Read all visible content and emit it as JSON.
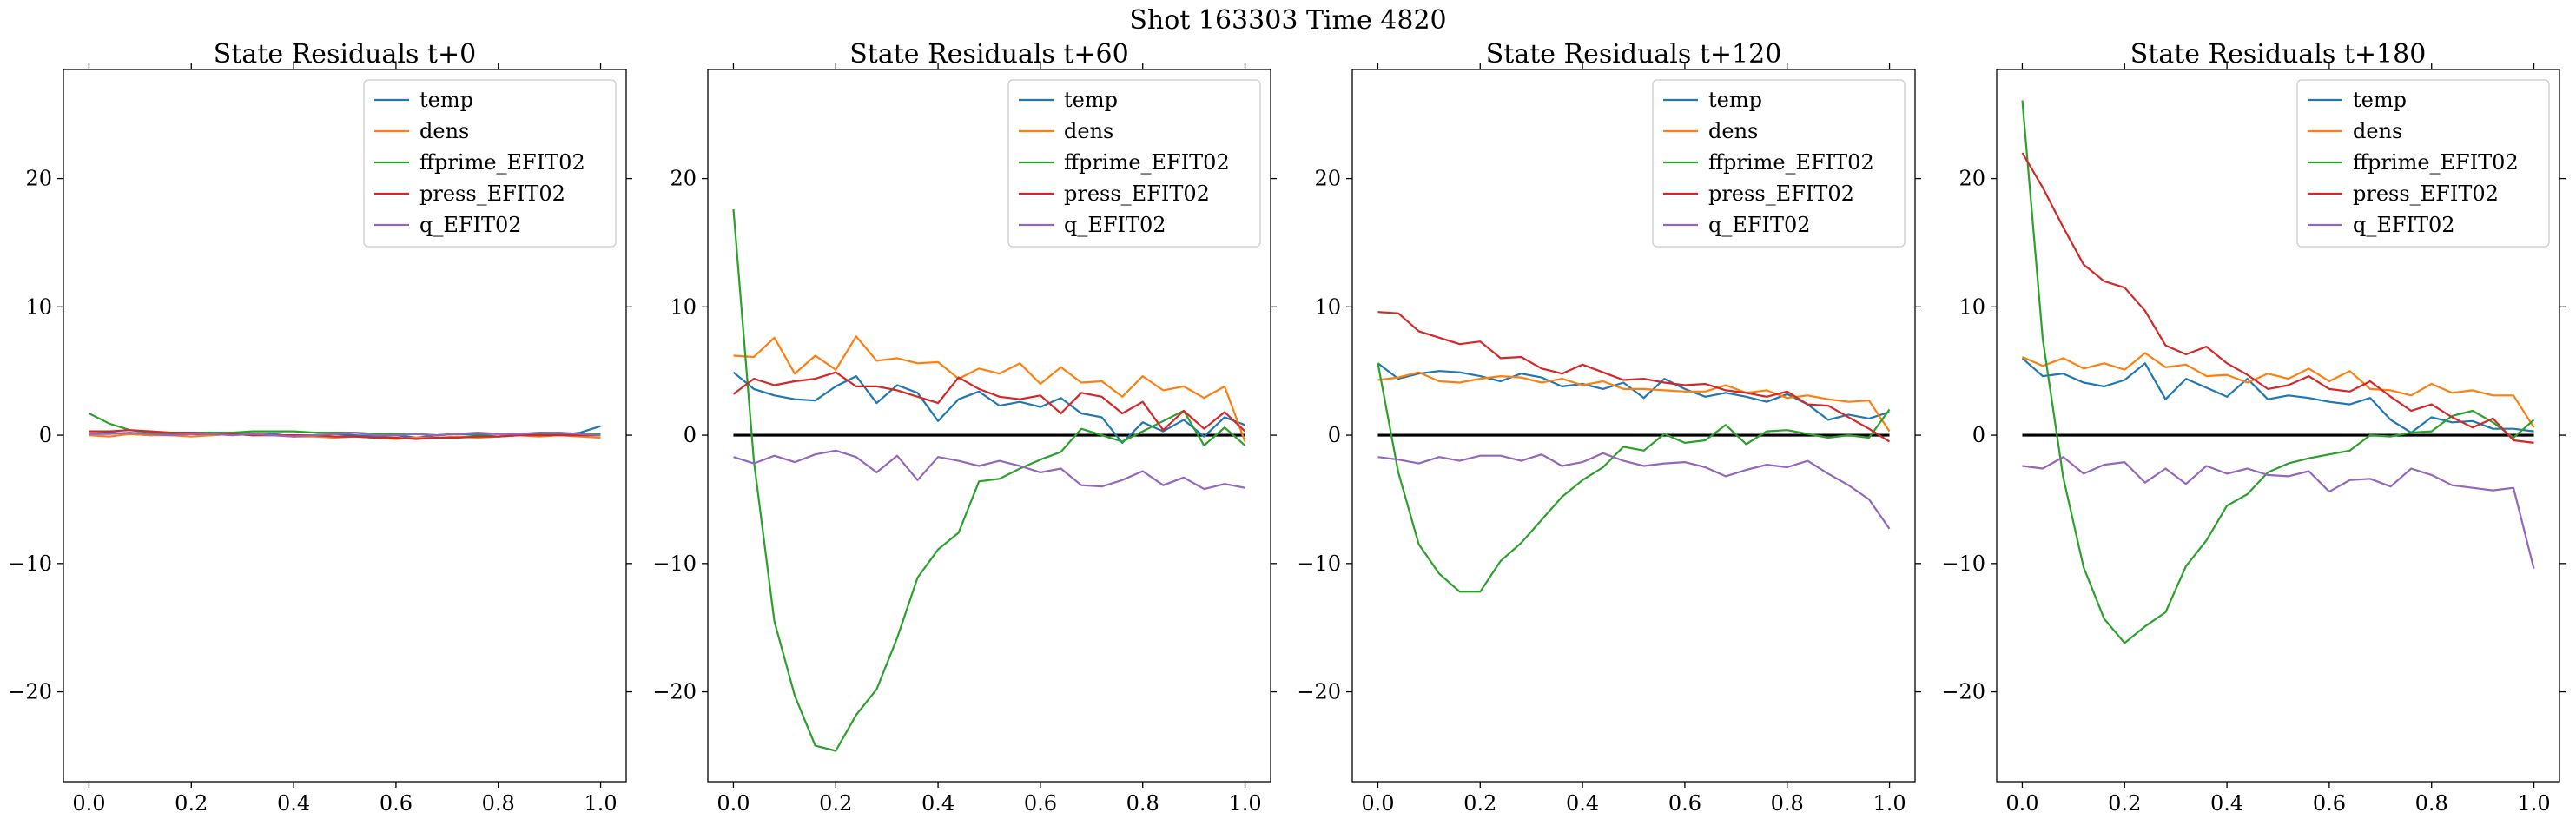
{
  "figure": {
    "suptitle": "Shot 163303   Time 4820",
    "colors": {
      "temp": "#1f77b4",
      "dens": "#ff7f0e",
      "ffprime_EFIT02": "#2ca02c",
      "press_EFIT02": "#d62728",
      "q_EFIT02": "#9467bd",
      "zero_line": "#000000"
    }
  },
  "chart_data": [
    {
      "type": "line",
      "title": "State Residuals t+0",
      "xlabel": "",
      "ylabel": "",
      "xlim": [
        -0.05,
        1.05
      ],
      "ylim": [
        -27,
        28.5
      ],
      "xticks": [
        0.0,
        0.2,
        0.4,
        0.6,
        0.8,
        1.0
      ],
      "xtick_labels": [
        "0.0",
        "0.2",
        "0.4",
        "0.6",
        "0.8",
        "1.0"
      ],
      "yticks": [
        -20,
        -10,
        0,
        10,
        20
      ],
      "ytick_labels": [
        "−20",
        "−10",
        "0",
        "10",
        "20"
      ],
      "grid": false,
      "legend": "upper right",
      "zero_line": false,
      "x": [
        0.0,
        0.04,
        0.08,
        0.12,
        0.16,
        0.2,
        0.24,
        0.28,
        0.32,
        0.36,
        0.4,
        0.44,
        0.48,
        0.52,
        0.56,
        0.6,
        0.64,
        0.68,
        0.72,
        0.76,
        0.8,
        0.84,
        0.88,
        0.92,
        0.96,
        1.0
      ],
      "series": [
        {
          "name": "temp",
          "values": [
            0.1,
            0.2,
            0.1,
            0.0,
            0.1,
            0.1,
            0.0,
            0.1,
            0.0,
            0.1,
            -0.1,
            0.0,
            0.1,
            0.0,
            -0.1,
            0.0,
            -0.2,
            0.0,
            0.1,
            0.0,
            -0.1,
            0.0,
            0.1,
            0.0,
            0.2,
            0.7
          ]
        },
        {
          "name": "dens",
          "values": [
            0.0,
            -0.1,
            0.1,
            0.0,
            0.0,
            -0.1,
            0.0,
            0.1,
            0.0,
            0.0,
            -0.1,
            -0.1,
            -0.2,
            -0.1,
            -0.2,
            -0.3,
            -0.2,
            -0.2,
            -0.1,
            -0.2,
            -0.1,
            0.0,
            -0.1,
            0.0,
            -0.1,
            -0.2
          ]
        },
        {
          "name": "ffprime_EFIT02",
          "values": [
            1.7,
            0.9,
            0.4,
            0.2,
            0.1,
            0.2,
            0.2,
            0.2,
            0.3,
            0.3,
            0.3,
            0.2,
            0.2,
            0.2,
            0.1,
            0.1,
            0.1,
            0.0,
            0.1,
            0.1,
            0.1,
            0.1,
            0.1,
            0.1,
            0.1,
            0.1
          ]
        },
        {
          "name": "press_EFIT02",
          "values": [
            0.3,
            0.3,
            0.4,
            0.3,
            0.2,
            0.2,
            0.1,
            0.1,
            0.0,
            0.0,
            0.0,
            0.0,
            -0.1,
            -0.1,
            -0.2,
            -0.2,
            -0.3,
            -0.2,
            -0.2,
            -0.1,
            -0.1,
            0.0,
            0.0,
            0.0,
            0.0,
            0.0
          ]
        },
        {
          "name": "q_EFIT02",
          "values": [
            0.1,
            0.1,
            0.2,
            0.1,
            0.0,
            0.1,
            0.1,
            0.0,
            0.1,
            0.0,
            -0.1,
            0.0,
            0.1,
            0.2,
            0.0,
            0.0,
            0.1,
            0.0,
            0.1,
            0.2,
            0.1,
            0.1,
            0.2,
            0.2,
            0.1,
            0.0
          ]
        }
      ]
    },
    {
      "type": "line",
      "title": "State Residuals t+60",
      "xlabel": "",
      "ylabel": "",
      "xlim": [
        -0.05,
        1.05
      ],
      "ylim": [
        -27,
        28.5
      ],
      "xticks": [
        0.0,
        0.2,
        0.4,
        0.6,
        0.8,
        1.0
      ],
      "xtick_labels": [
        "0.0",
        "0.2",
        "0.4",
        "0.6",
        "0.8",
        "1.0"
      ],
      "yticks": [
        -20,
        -10,
        0,
        10,
        20
      ],
      "ytick_labels": [
        "−20",
        "−10",
        "0",
        "10",
        "20"
      ],
      "grid": false,
      "legend": "upper right",
      "zero_line": true,
      "x": [
        0.0,
        0.04,
        0.08,
        0.12,
        0.16,
        0.2,
        0.24,
        0.28,
        0.32,
        0.36,
        0.4,
        0.44,
        0.48,
        0.52,
        0.56,
        0.6,
        0.64,
        0.68,
        0.72,
        0.76,
        0.8,
        0.84,
        0.88,
        0.92,
        0.96,
        1.0
      ],
      "series": [
        {
          "name": "temp",
          "values": [
            4.9,
            3.6,
            3.1,
            2.8,
            2.7,
            3.8,
            4.6,
            2.5,
            3.9,
            3.3,
            1.1,
            2.8,
            3.4,
            2.3,
            2.6,
            2.2,
            2.9,
            1.7,
            1.4,
            -0.6,
            1.0,
            0.3,
            1.2,
            -0.1,
            1.4,
            0.8
          ]
        },
        {
          "name": "dens",
          "values": [
            6.2,
            6.1,
            7.6,
            4.8,
            6.2,
            5.1,
            7.7,
            5.8,
            6.0,
            5.6,
            5.7,
            4.4,
            5.2,
            4.8,
            5.6,
            4.0,
            5.3,
            4.1,
            4.2,
            3.0,
            4.6,
            3.5,
            3.8,
            2.9,
            3.8,
            -0.5
          ]
        },
        {
          "name": "ffprime_EFIT02",
          "values": [
            17.6,
            -2.0,
            -14.5,
            -20.3,
            -24.2,
            -24.6,
            -21.8,
            -19.8,
            -15.8,
            -11.1,
            -8.9,
            -7.6,
            -3.6,
            -3.4,
            -2.6,
            -1.9,
            -1.3,
            0.5,
            0.0,
            -0.5,
            0.3,
            1.1,
            1.9,
            -0.8,
            0.6,
            -0.8
          ]
        },
        {
          "name": "press_EFIT02",
          "values": [
            3.2,
            4.4,
            3.9,
            4.2,
            4.4,
            4.9,
            3.8,
            3.8,
            3.5,
            3.0,
            2.5,
            4.5,
            3.6,
            3.0,
            2.8,
            3.1,
            1.7,
            3.3,
            3.0,
            1.7,
            2.6,
            0.4,
            1.9,
            0.5,
            1.8,
            0.3
          ]
        },
        {
          "name": "q_EFIT02",
          "values": [
            -1.7,
            -2.2,
            -1.6,
            -2.1,
            -1.5,
            -1.2,
            -1.7,
            -2.9,
            -1.6,
            -3.5,
            -1.7,
            -2.0,
            -2.4,
            -2.0,
            -2.4,
            -2.9,
            -2.6,
            -3.9,
            -4.0,
            -3.5,
            -2.8,
            -3.9,
            -3.3,
            -4.2,
            -3.8,
            -4.1
          ]
        }
      ]
    },
    {
      "type": "line",
      "title": "State Residuals t+120",
      "xlabel": "",
      "ylabel": "",
      "xlim": [
        -0.05,
        1.05
      ],
      "ylim": [
        -27,
        28.5
      ],
      "xticks": [
        0.0,
        0.2,
        0.4,
        0.6,
        0.8,
        1.0
      ],
      "xtick_labels": [
        "0.0",
        "0.2",
        "0.4",
        "0.6",
        "0.8",
        "1.0"
      ],
      "yticks": [
        -20,
        -10,
        0,
        10,
        20
      ],
      "ytick_labels": [
        "−20",
        "−10",
        "0",
        "10",
        "20"
      ],
      "grid": false,
      "legend": "upper right",
      "zero_line": true,
      "x": [
        0.0,
        0.04,
        0.08,
        0.12,
        0.16,
        0.2,
        0.24,
        0.28,
        0.32,
        0.36,
        0.4,
        0.44,
        0.48,
        0.52,
        0.56,
        0.6,
        0.64,
        0.68,
        0.72,
        0.76,
        0.8,
        0.84,
        0.88,
        0.92,
        0.96,
        1.0
      ],
      "series": [
        {
          "name": "temp",
          "values": [
            5.6,
            4.4,
            4.8,
            5.0,
            4.9,
            4.6,
            4.2,
            4.8,
            4.5,
            3.8,
            4.0,
            3.6,
            4.1,
            2.9,
            4.4,
            3.6,
            3.0,
            3.3,
            3.0,
            2.6,
            3.2,
            2.4,
            1.2,
            1.6,
            1.3,
            1.8
          ]
        },
        {
          "name": "dens",
          "values": [
            4.3,
            4.5,
            4.9,
            4.2,
            4.1,
            4.4,
            4.6,
            4.5,
            4.1,
            4.4,
            3.9,
            4.2,
            3.6,
            3.6,
            3.5,
            3.4,
            3.4,
            3.9,
            3.3,
            3.5,
            2.9,
            3.1,
            2.8,
            2.6,
            2.7,
            0.3
          ]
        },
        {
          "name": "ffprime_EFIT02",
          "values": [
            5.6,
            -2.9,
            -8.5,
            -10.8,
            -12.2,
            -12.2,
            -9.8,
            -8.4,
            -6.6,
            -4.8,
            -3.5,
            -2.5,
            -0.9,
            -1.2,
            0.1,
            -0.6,
            -0.4,
            0.8,
            -0.7,
            0.3,
            0.4,
            0.1,
            -0.2,
            0.0,
            -0.2,
            2.0
          ]
        },
        {
          "name": "press_EFIT02",
          "values": [
            9.6,
            9.5,
            8.1,
            7.6,
            7.1,
            7.3,
            6.0,
            6.1,
            5.2,
            4.8,
            5.5,
            4.9,
            4.3,
            4.4,
            4.1,
            3.9,
            4.0,
            3.5,
            3.3,
            3.0,
            3.4,
            2.4,
            2.3,
            1.4,
            0.5,
            -0.5
          ]
        },
        {
          "name": "q_EFIT02",
          "values": [
            -1.7,
            -1.9,
            -2.2,
            -1.7,
            -2.0,
            -1.6,
            -1.6,
            -2.0,
            -1.5,
            -2.4,
            -2.1,
            -1.4,
            -2.0,
            -2.4,
            -2.2,
            -2.1,
            -2.5,
            -3.2,
            -2.7,
            -2.3,
            -2.5,
            -2.0,
            -3.0,
            -3.9,
            -5.0,
            -7.3
          ]
        }
      ]
    },
    {
      "type": "line",
      "title": "State Residuals t+180",
      "xlabel": "",
      "ylabel": "",
      "xlim": [
        -0.05,
        1.05
      ],
      "ylim": [
        -27,
        28.5
      ],
      "xticks": [
        0.0,
        0.2,
        0.4,
        0.6,
        0.8,
        1.0
      ],
      "xtick_labels": [
        "0.0",
        "0.2",
        "0.4",
        "0.6",
        "0.8",
        "1.0"
      ],
      "yticks": [
        -20,
        -10,
        0,
        10,
        20
      ],
      "ytick_labels": [
        "−20",
        "−10",
        "0",
        "10",
        "20"
      ],
      "grid": false,
      "legend": "upper right",
      "zero_line": true,
      "x": [
        0.0,
        0.04,
        0.08,
        0.12,
        0.16,
        0.2,
        0.24,
        0.28,
        0.32,
        0.36,
        0.4,
        0.44,
        0.48,
        0.52,
        0.56,
        0.6,
        0.64,
        0.68,
        0.72,
        0.76,
        0.8,
        0.84,
        0.88,
        0.92,
        0.96,
        1.0
      ],
      "series": [
        {
          "name": "temp",
          "values": [
            6.0,
            4.6,
            4.8,
            4.1,
            3.8,
            4.3,
            5.6,
            2.8,
            4.4,
            3.7,
            3.0,
            4.4,
            2.8,
            3.1,
            2.9,
            2.6,
            2.4,
            2.9,
            1.2,
            0.2,
            1.4,
            1.0,
            1.1,
            0.5,
            0.5,
            0.3
          ]
        },
        {
          "name": "dens",
          "values": [
            6.1,
            5.4,
            6.0,
            5.2,
            5.6,
            5.1,
            6.4,
            5.3,
            5.5,
            4.6,
            4.7,
            4.1,
            4.8,
            4.4,
            5.2,
            4.2,
            5.0,
            3.6,
            3.5,
            3.1,
            4.0,
            3.3,
            3.5,
            3.1,
            3.1,
            0.6
          ]
        },
        {
          "name": "ffprime_EFIT02",
          "values": [
            26.1,
            7.5,
            -3.3,
            -10.3,
            -14.3,
            -16.2,
            -14.9,
            -13.8,
            -10.2,
            -8.2,
            -5.5,
            -4.6,
            -2.9,
            -2.2,
            -1.8,
            -1.5,
            -1.2,
            0.0,
            -0.1,
            0.2,
            0.3,
            1.5,
            1.9,
            1.0,
            -0.2,
            1.2
          ]
        },
        {
          "name": "press_EFIT02",
          "values": [
            22.0,
            19.3,
            16.2,
            13.3,
            12.0,
            11.5,
            9.7,
            7.0,
            6.3,
            6.9,
            5.6,
            4.7,
            3.6,
            3.9,
            4.6,
            3.6,
            3.4,
            4.2,
            3.0,
            1.9,
            2.4,
            1.4,
            0.6,
            1.3,
            -0.4,
            -0.6
          ]
        },
        {
          "name": "q_EFIT02",
          "values": [
            -2.4,
            -2.6,
            -1.7,
            -3.0,
            -2.3,
            -2.1,
            -3.7,
            -2.6,
            -3.8,
            -2.4,
            -3.0,
            -2.6,
            -3.1,
            -3.2,
            -2.8,
            -4.4,
            -3.5,
            -3.4,
            -4.0,
            -2.6,
            -3.1,
            -3.9,
            -4.1,
            -4.3,
            -4.1,
            -10.4
          ]
        }
      ]
    }
  ]
}
